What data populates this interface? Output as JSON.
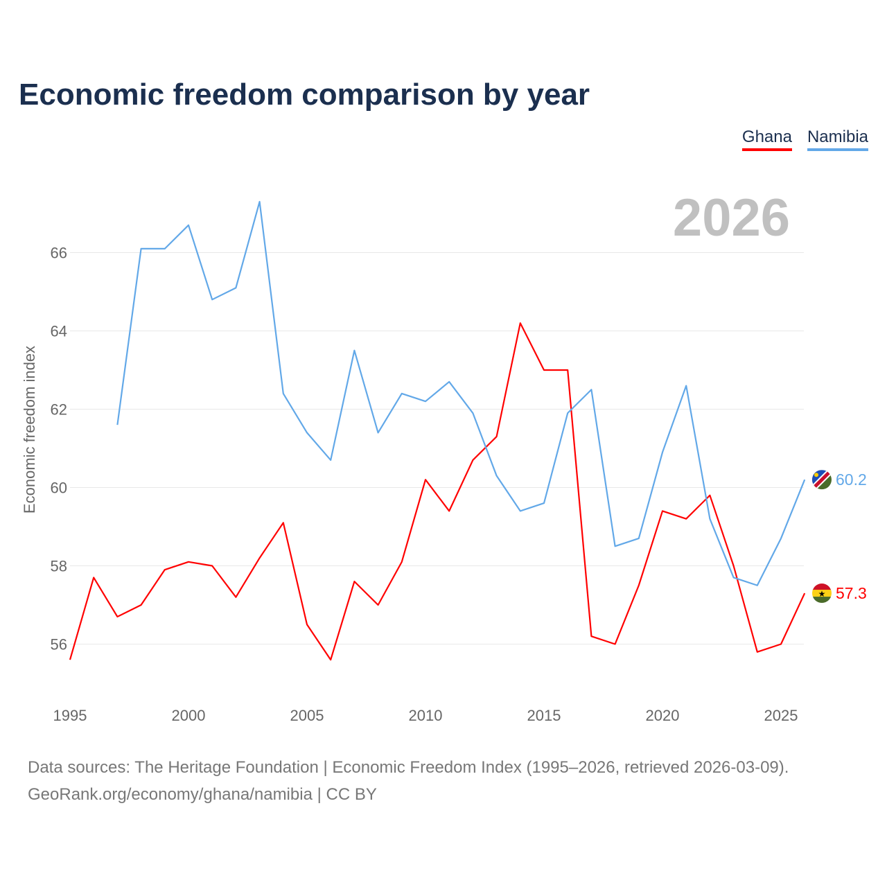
{
  "title": "Economic freedom comparison by year",
  "footer": {
    "line1": "Data sources: The Heritage Foundation | Economic Freedom Index (1995–2026, retrieved 2026-03-09).",
    "line2": "GeoRank.org/economy/ghana/namibia | CC BY"
  },
  "chart_data": {
    "type": "line",
    "title": "Economic freedom comparison by year",
    "xlabel": "",
    "ylabel": "Economic freedom index",
    "year_label": "2026",
    "xlim": [
      1995,
      2026
    ],
    "ylim": [
      55,
      68
    ],
    "xticks": [
      1995,
      2000,
      2005,
      2010,
      2015,
      2020,
      2025
    ],
    "yticks": [
      56,
      58,
      60,
      62,
      64,
      66
    ],
    "grid": true,
    "legend_position": "top-right",
    "series": [
      {
        "name": "Ghana",
        "color": "#ff0000",
        "end_label": "57.3",
        "x": [
          1995,
          1996,
          1997,
          1998,
          1999,
          2000,
          2001,
          2002,
          2003,
          2004,
          2005,
          2006,
          2007,
          2008,
          2009,
          2010,
          2011,
          2012,
          2013,
          2014,
          2015,
          2016,
          2017,
          2018,
          2019,
          2020,
          2021,
          2022,
          2023,
          2024,
          2025,
          2026
        ],
        "values": [
          55.6,
          57.7,
          56.7,
          57.0,
          57.9,
          58.1,
          58.0,
          57.2,
          58.2,
          59.1,
          56.5,
          55.6,
          57.6,
          57.0,
          58.1,
          60.2,
          59.4,
          60.7,
          61.3,
          64.2,
          63.0,
          63.0,
          56.2,
          56.0,
          57.5,
          59.4,
          59.2,
          59.8,
          58.0,
          55.8,
          56.0,
          57.3
        ]
      },
      {
        "name": "Namibia",
        "color": "#62a8e8",
        "end_label": "60.2",
        "x": [
          1997,
          1998,
          1999,
          2000,
          2001,
          2002,
          2003,
          2004,
          2005,
          2006,
          2007,
          2008,
          2009,
          2010,
          2011,
          2012,
          2013,
          2014,
          2015,
          2016,
          2017,
          2018,
          2019,
          2020,
          2021,
          2022,
          2023,
          2024,
          2025,
          2026
        ],
        "values": [
          61.6,
          66.1,
          66.1,
          66.7,
          64.8,
          65.1,
          67.3,
          62.4,
          61.4,
          60.7,
          63.5,
          61.4,
          62.4,
          62.2,
          62.7,
          61.9,
          60.3,
          59.4,
          59.6,
          61.9,
          62.5,
          58.5,
          58.7,
          60.9,
          62.6,
          59.2,
          57.7,
          57.5,
          58.7,
          60.2
        ]
      }
    ]
  }
}
